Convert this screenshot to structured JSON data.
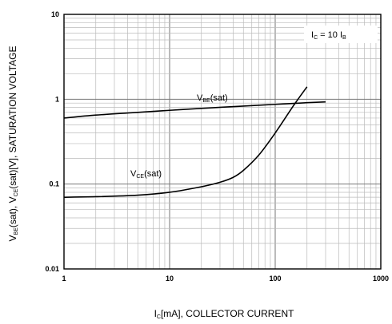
{
  "chart_data": {
    "type": "line",
    "x_scale": "log",
    "y_scale": "log",
    "xlim": [
      1,
      1000
    ],
    "ylim": [
      0.01,
      10
    ],
    "grid": true,
    "x_ticks": [
      "1",
      "10",
      "100",
      "1000"
    ],
    "y_ticks": [
      "0.01",
      "0.1",
      "1",
      "10"
    ],
    "xlabel": {
      "main": "I",
      "sub": "C",
      "rest": "[mA], COLLECTOR CURRENT"
    },
    "ylabel": {
      "p1": "V",
      "s1": "BE",
      "p2": "(sat), V",
      "s2": "CE",
      "p3": "(sat)[V], SATURATION VOLTAGE"
    },
    "condition": {
      "p1": "I",
      "s1": "C",
      "p2": " = 10 I",
      "s2": "B"
    },
    "series": [
      {
        "name": {
          "main": "V",
          "sub": "BE",
          "rest": "(sat)"
        },
        "x": [
          1,
          2,
          5,
          10,
          20,
          50,
          100,
          200,
          300
        ],
        "y": [
          0.6,
          0.65,
          0.7,
          0.74,
          0.78,
          0.83,
          0.87,
          0.91,
          0.93
        ]
      },
      {
        "name": {
          "main": "V",
          "sub": "CE",
          "rest": "(sat)"
        },
        "x": [
          1,
          2,
          5,
          10,
          20,
          30,
          40,
          50,
          70,
          100,
          150,
          200
        ],
        "y": [
          0.07,
          0.071,
          0.074,
          0.08,
          0.093,
          0.105,
          0.12,
          0.145,
          0.22,
          0.4,
          0.85,
          1.4
        ]
      }
    ]
  }
}
